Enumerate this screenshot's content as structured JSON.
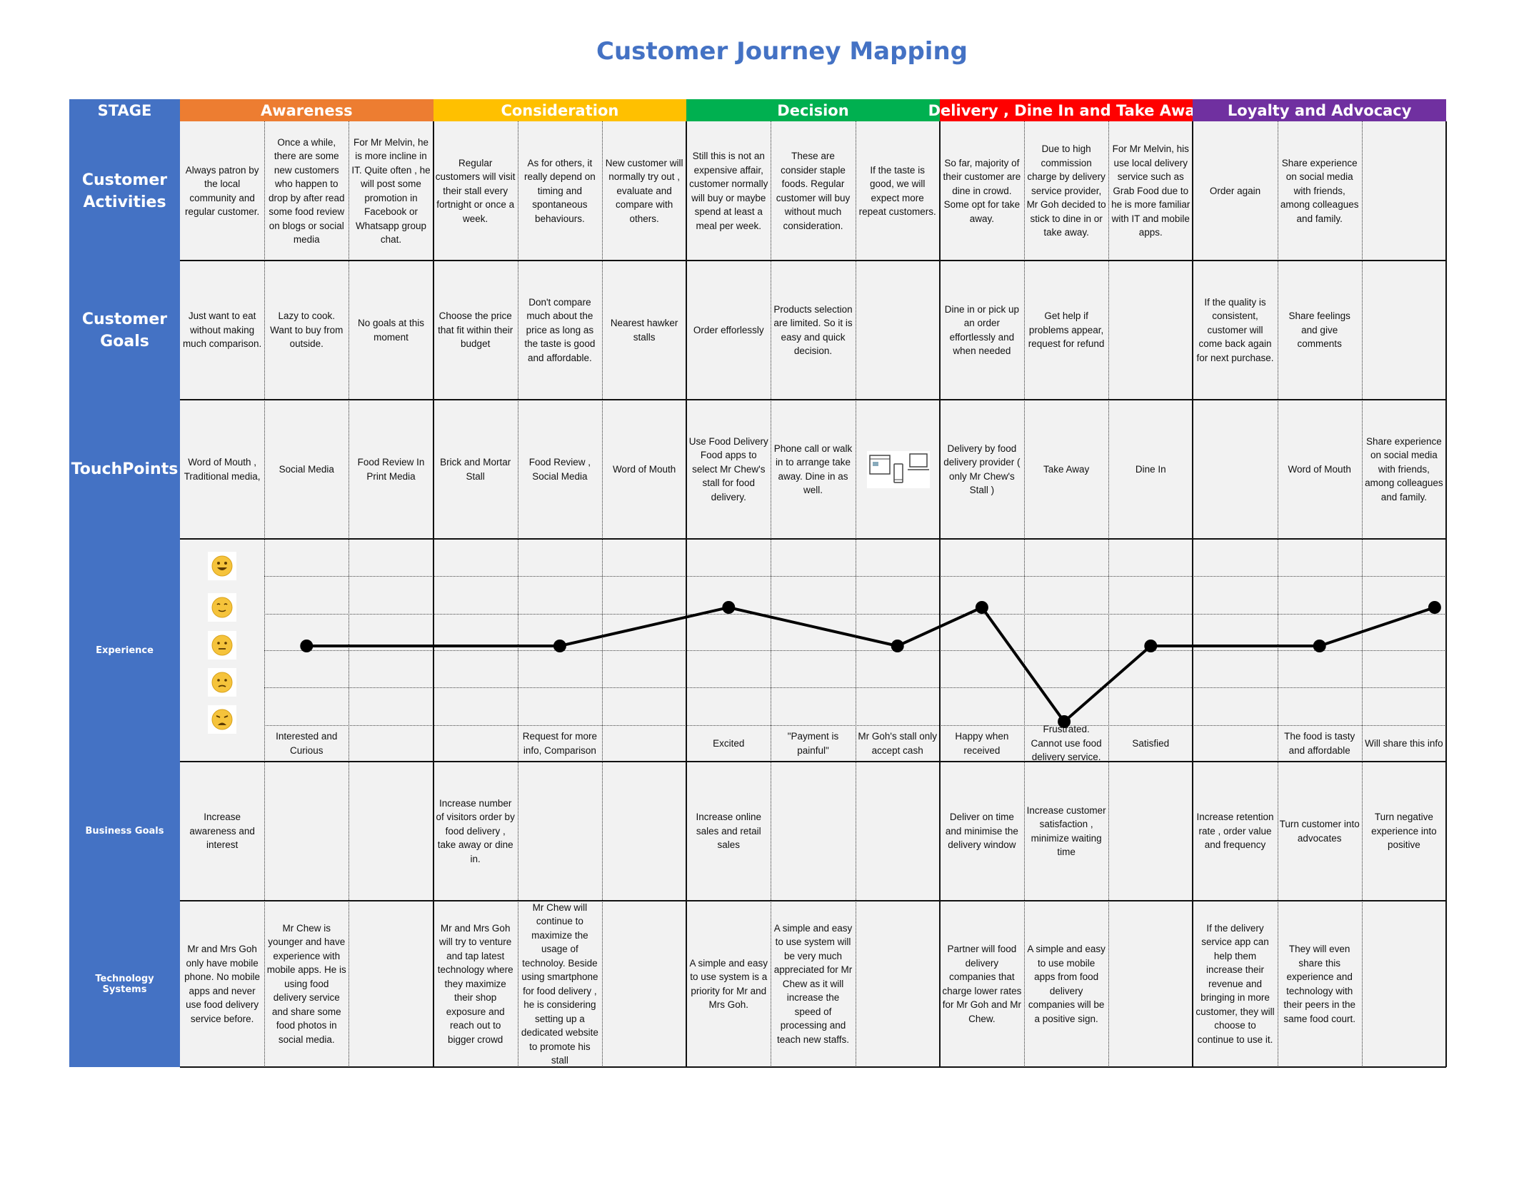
{
  "title": "Customer Journey Mapping",
  "stage_label": "STAGE",
  "stages": [
    {
      "label": "Awareness",
      "color": "#ED7D31"
    },
    {
      "label": "Consideration",
      "color": "#FFC000"
    },
    {
      "label": "Decision",
      "color": "#00B050"
    },
    {
      "label": "Delivery , Dine In and Take Away",
      "color": "#FF0000"
    },
    {
      "label": "Loyalty and Advocacy",
      "color": "#7030A0"
    }
  ],
  "row_labels": {
    "activities": "Customer Activities",
    "goals": "Customer Goals",
    "touchpoints": "TouchPoints",
    "experience": "Experience",
    "business": "Business Goals",
    "technology": "Technology Systems"
  },
  "activities": [
    "Always patron by the local community and regular customer.",
    "Once a while, there are some new customers who happen to drop by after read some food review on blogs or social media",
    "For Mr Melvin, he is more incline in IT. Quite often , he will post some promotion in Facebook or Whatsapp group chat.",
    "Regular customers will visit their stall every fortnight or once a week.",
    "As for others, it really depend on timing and spontaneous behaviours.",
    "New customer will normally try out , evaluate and compare with others.",
    "Still this is not an expensive affair, customer normally will buy or maybe spend at least a meal per week.",
    "These are consider staple foods. Regular customer will buy without much consideration.",
    "If the taste is good, we will expect more repeat customers.",
    "So far, majority of their customer are dine in crowd. Some opt for take away.",
    "Due to high commission charge by delivery service provider, Mr Goh decided to stick to dine in or take away.",
    "For Mr Melvin, his use local delivery service such as Grab Food due to he is more familiar with IT and mobile apps.",
    "Order again",
    "Share experience on social media with friends, among colleagues and family.",
    ""
  ],
  "goals": [
    "Just want to eat without making much comparison.",
    "Lazy to cook. Want to buy from outside.",
    "No goals at this moment",
    "Choose the price that fit within their budget",
    "Don't compare much about the price as long as the taste is good and affordable.",
    "Nearest hawker stalls",
    "Order efforlessly",
    "Products selection are limited. So it is easy and quick decision.",
    "",
    "Dine in or pick up an order effortlessly and when needed",
    "Get help if problems appear, request for refund",
    "",
    "If the quality is consistent, customer will come back again for next purchase.",
    "Share feelings and give comments",
    ""
  ],
  "touchpoints": [
    "Word of Mouth , Traditional media,",
    "Social Media",
    "Food Review In Print Media",
    "Brick and Mortar Stall",
    "Food Review , Social Media",
    "Word of Mouth",
    "Use Food Delivery Food apps to select Mr Chew's stall for food delivery.",
    "Phone call or walk in to arrange take away. Dine in as well.",
    "",
    "Delivery by food delivery provider ( only Mr Chew's Stall )",
    "Take Away",
    "Dine In",
    "",
    "Word of Mouth",
    "Share experience on social media with friends, among colleagues and family."
  ],
  "touchpoint_device_icon": "devices-icon",
  "experience_faces": [
    "happy-face-icon",
    "content-face-icon",
    "neutral-face-icon",
    "worried-face-icon",
    "frustrated-face-icon"
  ],
  "experience_points": [
    {
      "col": 1,
      "level": 3,
      "label": "Interested and Curious"
    },
    {
      "col": 4,
      "level": 3,
      "label": "Request for more info, Comparison"
    },
    {
      "col": 6,
      "level": 2,
      "label": "Excited"
    },
    {
      "col": 7,
      "level": null,
      "label": "\"Payment is painful\""
    },
    {
      "col": 8,
      "level": 3,
      "label": "Mr Goh's stall only accept cash"
    },
    {
      "col": 9,
      "level": 2,
      "label": "Happy when received"
    },
    {
      "col": 10,
      "level": 5,
      "label": "Frustrated. Cannot use food delivery service."
    },
    {
      "col": 11,
      "level": 3,
      "label": "Satisfied"
    },
    {
      "col": 13,
      "level": 3,
      "label": "The food is tasty and affordable"
    },
    {
      "col": 14,
      "level": 2,
      "label": "Will share this info"
    }
  ],
  "business": [
    "Increase awareness and interest",
    "",
    "",
    "Increase number of visitors order by food delivery , take away or dine in.",
    "",
    "",
    "Increase online sales and retail sales",
    "",
    "",
    "Deliver on time and minimise the delivery window",
    "Increase customer satisfaction , minimize waiting time",
    "",
    "Increase retention rate , order value and frequency",
    "Turn customer into advocates",
    "Turn negative experience into positive"
  ],
  "technology": [
    "Mr and Mrs Goh only have mobile phone. No mobile apps and never use food delivery service before.",
    "Mr Chew is younger and have experience with mobile apps. He is using food delivery service and share some food photos in social media.",
    "",
    "Mr and Mrs Goh will try to venture and tap latest technology where they maximize their shop exposure and reach out to bigger crowd",
    "Mr Chew will continue to maximize the usage of technoloy. Beside using smartphone for food delivery , he is considering setting up a dedicated website to promote his stall",
    "",
    "A simple and easy to use system is a priority for Mr and Mrs Goh.",
    "A simple and easy to use system will be very much appreciated for Mr Chew as it will increase the speed of processing and teach new staffs.",
    "",
    "Partner will food delivery companies that charge lower rates for Mr Goh and Mr Chew.",
    "A simple and easy to use mobile apps from food delivery companies will be a positive sign.",
    "",
    "If the delivery service app can help them increase their revenue and bringing in more customer, they will choose to continue to use it.",
    "They will even share this experience and technology with their peers in the same food court.",
    ""
  ],
  "colors": {
    "row_header": "#4472C4",
    "cell_bg": "#F2F2F2",
    "title": "#4472C4"
  }
}
